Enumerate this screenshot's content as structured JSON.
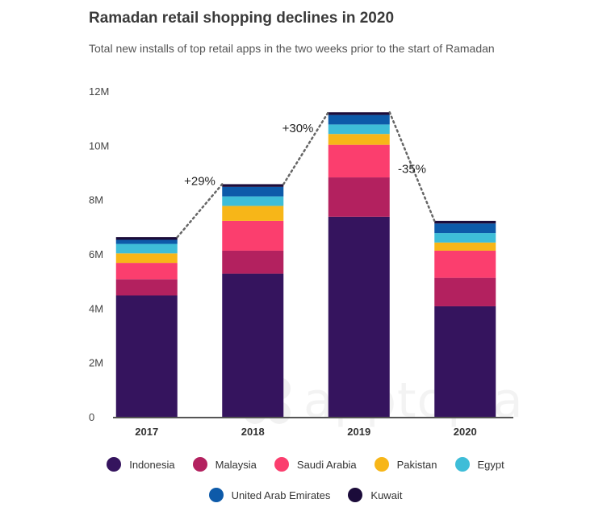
{
  "header": {
    "title": "Ramadan retail shopping declines in 2020",
    "subtitle": "Total new installs of top retail apps in the two weeks prior to the start of Ramadan"
  },
  "watermark": {
    "text": "apptopia"
  },
  "chart_data": {
    "type": "bar",
    "stacked": true,
    "title": "Ramadan retail shopping declines in 2020",
    "subtitle": "Total new installs of top retail apps in the two weeks prior to the start of Ramadan",
    "categories": [
      "2017",
      "2018",
      "2019",
      "2020"
    ],
    "ylim": [
      0,
      12
    ],
    "yticks": [
      "0",
      "2M",
      "4M",
      "6M",
      "8M",
      "10M",
      "12M"
    ],
    "grid": false,
    "legend_position": "bottom",
    "series": [
      {
        "name": "Indonesia",
        "color": "#35145e",
        "values": [
          4.5,
          5.3,
          7.4,
          4.1
        ]
      },
      {
        "name": "Malaysia",
        "color": "#b3215f",
        "values": [
          0.6,
          0.85,
          1.45,
          1.05
        ]
      },
      {
        "name": "Saudi Arabia",
        "color": "#fb3e6e",
        "values": [
          0.6,
          1.1,
          1.2,
          1.0
        ]
      },
      {
        "name": "Pakistan",
        "color": "#f7b618",
        "values": [
          0.35,
          0.55,
          0.4,
          0.3
        ]
      },
      {
        "name": "Egypt",
        "color": "#3ebdd8",
        "values": [
          0.35,
          0.35,
          0.35,
          0.35
        ]
      },
      {
        "name": "United Arab Emirates",
        "color": "#0d5aa9",
        "values": [
          0.15,
          0.35,
          0.35,
          0.35
        ]
      },
      {
        "name": "Kuwait",
        "color": "#1b0b3a",
        "values": [
          0.1,
          0.1,
          0.1,
          0.1
        ]
      }
    ],
    "annotations": [
      {
        "text": "+29%",
        "between": [
          "2017",
          "2018"
        ]
      },
      {
        "text": "+30%",
        "between": [
          "2018",
          "2019"
        ]
      },
      {
        "text": "-35%",
        "between": [
          "2019",
          "2020"
        ]
      }
    ]
  }
}
